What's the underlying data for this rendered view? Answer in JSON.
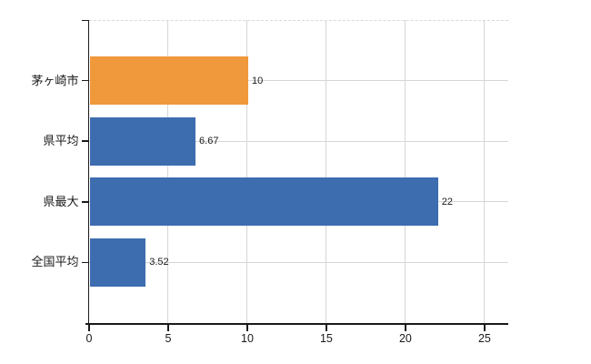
{
  "chart_data": {
    "type": "bar",
    "orientation": "horizontal",
    "title": "",
    "xlabel": "",
    "ylabel": "",
    "categories": [
      "茅ヶ崎市",
      "県平均",
      "県最大",
      "全国平均"
    ],
    "values": [
      10,
      6.67,
      22,
      3.52
    ],
    "value_labels": [
      "10",
      "6.67",
      "22",
      "3.52"
    ],
    "bar_colors": [
      "#F0983C",
      "#3D6DAF",
      "#3D6DAF",
      "#3D6DAF"
    ],
    "x_ticks": [
      0,
      5,
      10,
      15,
      20,
      25
    ],
    "x_tick_labels": [
      "0",
      "5",
      "10",
      "15",
      "20",
      "25"
    ],
    "xlim": [
      0,
      26.5
    ],
    "grid": true,
    "legend": "none"
  },
  "colors": {
    "background": "#ffffff",
    "axis": "#1a1a1a",
    "gridline": "#d6d6d6",
    "top_border_dashed": "#d9d9d9",
    "highlight_bar": "#F0983C",
    "default_bar": "#3D6DAF",
    "text": "#1a1a1a"
  }
}
